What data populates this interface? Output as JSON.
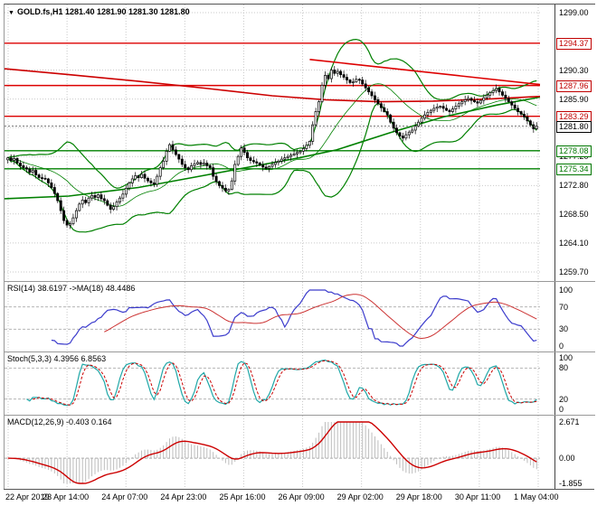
{
  "header": {
    "symbol_period": "GOLD.fs,H1",
    "ohlc": "1281.40 1281.90 1281.30 1281.80"
  },
  "icons": {
    "symbol_arrow": "▼"
  },
  "colors": {
    "grid": "#c9c9c9",
    "candle": "#000000",
    "candle_bull_fill": "#ffffff",
    "candle_bear_fill": "#000000",
    "resistance": "#dd0000",
    "support": "#008000",
    "bollinger": "#008000",
    "ma_green": "#008000",
    "ma_red": "#cc0000",
    "trendline": "#dd0000",
    "current_line": "#555555",
    "rsi_line": "#3c3ccc",
    "rsi_ma": "#cc3333",
    "stoch_k": "#20a8a8",
    "stoch_d": "#cc0000",
    "macd_hist": "#bdbdbd",
    "macd_signal": "#cc0000",
    "level_dash": "#b5b5b5"
  },
  "chart_data": {
    "type": "candlestick",
    "symbol": "GOLD.fs",
    "timeframe": "H1",
    "last_ohlc": {
      "open": 1281.4,
      "high": 1281.9,
      "low": 1281.3,
      "close": 1281.8
    },
    "x_labels": [
      "22 Apr 2019",
      "23 Apr 14:00",
      "24 Apr 07:00",
      "24 Apr 23:00",
      "25 Apr 16:00",
      "26 Apr 09:00",
      "29 Apr 02:00",
      "29 Apr 18:00",
      "30 Apr 11:00",
      "1 May 04:00"
    ],
    "price_axis": {
      "tick_labels": [
        "1299.00",
        "1290.30",
        "1285.90",
        "1281.60",
        "1277.20",
        "1272.80",
        "1268.50",
        "1264.10",
        "1259.70"
      ],
      "tick_values": [
        1299.0,
        1290.3,
        1285.9,
        1281.6,
        1277.2,
        1272.8,
        1268.5,
        1264.1,
        1259.7
      ]
    },
    "closes": [
      1277.0,
      1276.6,
      1276.9,
      1276.2,
      1275.8,
      1275.5,
      1275.3,
      1274.8,
      1275.1,
      1274.4,
      1274.0,
      1273.9,
      1273.8,
      1273.2,
      1272.5,
      1271.6,
      1270.5,
      1269.0,
      1267.5,
      1266.8,
      1267.0,
      1267.9,
      1269.0,
      1270.0,
      1270.6,
      1270.2,
      1270.9,
      1271.3,
      1271.0,
      1271.4,
      1270.8,
      1270.5,
      1269.8,
      1269.2,
      1269.6,
      1270.3,
      1270.9,
      1271.5,
      1272.4,
      1273.2,
      1273.8,
      1274.3,
      1274.0,
      1274.5,
      1273.9,
      1273.5,
      1273.2,
      1273.0,
      1274.2,
      1275.5,
      1276.5,
      1278.0,
      1279.0,
      1278.2,
      1277.5,
      1276.8,
      1276.0,
      1275.5,
      1275.2,
      1275.8,
      1276.1,
      1276.3,
      1276.0,
      1276.2,
      1275.8,
      1275.5,
      1274.2,
      1273.4,
      1272.8,
      1272.4,
      1272.0,
      1272.2,
      1273.5,
      1276.0,
      1277.2,
      1278.5,
      1277.8,
      1277.0,
      1276.6,
      1276.4,
      1276.2,
      1275.9,
      1275.6,
      1275.4,
      1275.7,
      1276.0,
      1276.3,
      1276.5,
      1276.8,
      1277.0,
      1277.2,
      1277.4,
      1277.6,
      1277.8,
      1278.0,
      1278.4,
      1278.9,
      1279.5,
      1282.0,
      1284.0,
      1285.5,
      1288.0,
      1289.5,
      1289.0,
      1290.3,
      1289.8,
      1290.1,
      1289.6,
      1289.2,
      1288.8,
      1288.4,
      1288.5,
      1288.9,
      1288.8,
      1288.2,
      1287.6,
      1287.0,
      1286.4,
      1285.8,
      1285.2,
      1284.6,
      1284.0,
      1283.5,
      1282.4,
      1281.5,
      1280.8,
      1280.3,
      1280.0,
      1280.5,
      1280.9,
      1281.2,
      1281.8,
      1282.4,
      1283.0,
      1283.5,
      1283.9,
      1284.2,
      1284.5,
      1284.7,
      1284.8,
      1284.5,
      1284.2,
      1284.0,
      1284.4,
      1284.8,
      1285.2,
      1285.5,
      1285.8,
      1286.0,
      1285.7,
      1285.5,
      1285.3,
      1285.7,
      1286.1,
      1286.5,
      1286.9,
      1287.2,
      1287.5,
      1287.0,
      1286.5,
      1286.0,
      1285.5,
      1285.0,
      1284.5,
      1284.0,
      1283.6,
      1283.2,
      1282.6,
      1282.0,
      1281.4,
      1281.8
    ],
    "levels": {
      "resistance": [
        1294.37,
        1287.96,
        1283.29
      ],
      "support": [
        1278.08,
        1275.34
      ],
      "current_bid": 1281.8
    },
    "overlays": {
      "bollinger": {
        "period": 20,
        "deviation": 2
      },
      "ma_green_rising": [
        [
          0,
          1270.8
        ],
        [
          0.12,
          1271.2
        ],
        [
          0.25,
          1272.5
        ],
        [
          0.35,
          1274.0
        ],
        [
          0.45,
          1275.5
        ],
        [
          0.55,
          1277.0
        ],
        [
          0.62,
          1278.2
        ],
        [
          0.72,
          1280.8
        ],
        [
          0.82,
          1283.2
        ],
        [
          0.92,
          1285.0
        ],
        [
          1,
          1286.2
        ]
      ],
      "ma_red_falling": [
        [
          0,
          1290.5
        ],
        [
          0.12,
          1289.6
        ],
        [
          0.25,
          1288.6
        ],
        [
          0.38,
          1287.5
        ],
        [
          0.5,
          1286.4
        ],
        [
          0.6,
          1285.8
        ],
        [
          0.7,
          1285.5
        ],
        [
          0.8,
          1285.6
        ],
        [
          0.9,
          1285.9
        ],
        [
          1,
          1286.3
        ]
      ],
      "trendline_red": [
        [
          0.57,
          1291.9
        ],
        [
          1,
          1288.1
        ]
      ]
    },
    "indicators": [
      {
        "id": "rsi",
        "label": "RSI(14) 38.6197  ->MA(18) 48.4486",
        "values_shown": [
          38.6197,
          48.4486
        ],
        "period": 14,
        "ma_period": 18,
        "tick_labels": [
          "100",
          "70",
          "30",
          "0"
        ],
        "tick_values": [
          100,
          70,
          30,
          0
        ],
        "level_lines": [
          70,
          30
        ],
        "range": [
          0,
          100
        ]
      },
      {
        "id": "stoch",
        "label": "Stoch(5,3,3) 4.3956 6.8563",
        "values_shown": [
          4.3956,
          6.8563
        ],
        "params": [
          5,
          3,
          3
        ],
        "tick_labels": [
          "100",
          "80",
          "20",
          "0"
        ],
        "tick_values": [
          100,
          80,
          20,
          0
        ],
        "level_lines": [
          80,
          20
        ],
        "range": [
          0,
          100
        ]
      },
      {
        "id": "macd",
        "label": "MACD(12,26,9) -0.403 0.164",
        "values_shown": [
          -0.403,
          0.164
        ],
        "params": [
          12,
          26,
          9
        ],
        "tick_labels": [
          "2.671",
          "0.00",
          "-1.855"
        ],
        "tick_values": [
          2.671,
          0,
          -1.855
        ],
        "level_lines": [
          0
        ],
        "range": [
          -1.855,
          2.671
        ]
      }
    ]
  }
}
